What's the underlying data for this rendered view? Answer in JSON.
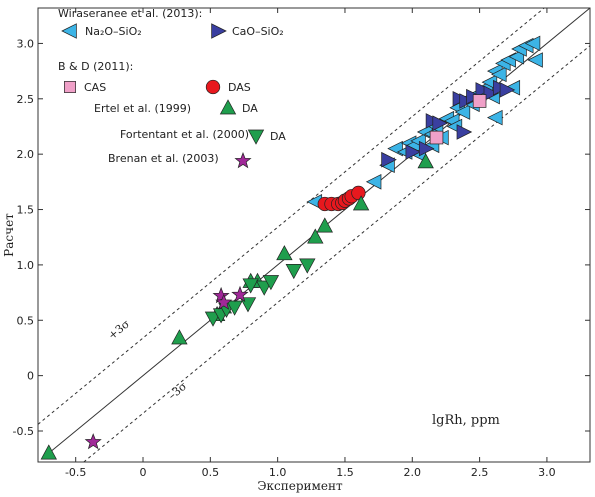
{
  "chart_data": {
    "type": "scatter",
    "xlabel": "Эксперимент",
    "ylabel": "Расчет",
    "annotation": "lgRh, ppm",
    "xlim": [
      -0.78,
      3.32
    ],
    "ylim": [
      -0.78,
      3.32
    ],
    "x_ticks": [
      -0.5,
      0,
      0.5,
      1.0,
      1.5,
      2.0,
      2.5,
      3.0
    ],
    "x_tick_labels": [
      "-0.5",
      "0",
      "0.5",
      "1.0",
      "1.5",
      "2.0",
      "2.5",
      "3.0"
    ],
    "y_ticks": [
      -0.5,
      0,
      0.5,
      1.0,
      1.5,
      2.0,
      2.5,
      3.0
    ],
    "y_tick_labels": [
      "-0.5",
      "0",
      "0.5",
      "1.0",
      "1.5",
      "2.0",
      "2.5",
      "3.0"
    ],
    "grid": false,
    "legend_position": "top-left",
    "lines": [
      {
        "kind": "identity",
        "style": "solid",
        "from": [
          -0.72,
          -0.72
        ],
        "to": [
          3.32,
          3.32
        ]
      },
      {
        "kind": "upper-band",
        "style": "dotted",
        "label": "+3σ",
        "from": [
          -0.78,
          -0.44
        ],
        "to": [
          2.98,
          3.32
        ]
      },
      {
        "kind": "lower-band",
        "style": "dotted",
        "label": "–3σ",
        "from": [
          -0.44,
          -0.78
        ],
        "to": [
          3.32,
          2.98
        ]
      }
    ],
    "group_headers": [
      {
        "text": "Wiraseranee et al. (2013):"
      },
      {
        "text": "B & D (2011):"
      }
    ],
    "series": [
      {
        "name": "Na₂O–SiO₂",
        "marker": "triangle-left",
        "color": "#3cb4e6",
        "points": [
          [
            1.28,
            1.57
          ],
          [
            1.72,
            1.75
          ],
          [
            1.82,
            1.9
          ],
          [
            1.88,
            2.05
          ],
          [
            1.95,
            2.02
          ],
          [
            1.98,
            2.1
          ],
          [
            2.02,
            2.08
          ],
          [
            2.05,
            2.12
          ],
          [
            2.1,
            2.2
          ],
          [
            2.15,
            2.18
          ],
          [
            2.18,
            2.25
          ],
          [
            2.22,
            2.15
          ],
          [
            2.26,
            2.32
          ],
          [
            2.3,
            2.3
          ],
          [
            2.34,
            2.42
          ],
          [
            2.38,
            2.38
          ],
          [
            2.42,
            2.5
          ],
          [
            2.45,
            2.45
          ],
          [
            2.5,
            2.55
          ],
          [
            2.55,
            2.6
          ],
          [
            2.58,
            2.65
          ],
          [
            2.6,
            2.52
          ],
          [
            2.62,
            2.75
          ],
          [
            2.65,
            2.72
          ],
          [
            2.68,
            2.82
          ],
          [
            2.72,
            2.85
          ],
          [
            2.75,
            2.6
          ],
          [
            2.78,
            2.88
          ],
          [
            2.8,
            2.95
          ],
          [
            2.85,
            2.98
          ],
          [
            2.9,
            3.0
          ],
          [
            2.92,
            2.85
          ],
          [
            2.62,
            2.33
          ],
          [
            2.32,
            2.25
          ],
          [
            2.15,
            2.08
          ],
          [
            2.05,
            2.0
          ]
        ]
      },
      {
        "name": "CaO–SiO₂",
        "marker": "triangle-right",
        "color": "#3a3fa0",
        "points": [
          [
            1.82,
            1.95
          ],
          [
            2.0,
            2.02
          ],
          [
            2.1,
            2.05
          ],
          [
            2.15,
            2.3
          ],
          [
            2.2,
            2.28
          ],
          [
            2.35,
            2.5
          ],
          [
            2.4,
            2.48
          ],
          [
            2.45,
            2.52
          ],
          [
            2.52,
            2.58
          ],
          [
            2.58,
            2.55
          ],
          [
            2.65,
            2.6
          ],
          [
            2.7,
            2.58
          ],
          [
            2.38,
            2.2
          ]
        ]
      },
      {
        "name": "CAS",
        "marker": "square",
        "color": "#f0a0c8",
        "points": [
          [
            2.18,
            2.15
          ],
          [
            2.5,
            2.48
          ]
        ]
      },
      {
        "name": "DAS",
        "marker": "circle",
        "color": "#e8181e",
        "points": [
          [
            1.35,
            1.55
          ],
          [
            1.4,
            1.55
          ],
          [
            1.45,
            1.55
          ],
          [
            1.48,
            1.56
          ],
          [
            1.5,
            1.58
          ],
          [
            1.53,
            1.6
          ],
          [
            1.55,
            1.62
          ],
          [
            1.6,
            1.65
          ]
        ]
      },
      {
        "name": "DA",
        "legend_prefix": "Ertel et al. (1999)",
        "marker": "triangle-up",
        "color": "#1f9e4d",
        "points": [
          [
            -0.7,
            -0.7
          ],
          [
            0.27,
            0.34
          ],
          [
            0.55,
            0.55
          ],
          [
            0.6,
            0.62
          ],
          [
            0.8,
            0.85
          ],
          [
            0.85,
            0.85
          ],
          [
            1.05,
            1.1
          ],
          [
            1.28,
            1.25
          ],
          [
            1.35,
            1.35
          ],
          [
            1.62,
            1.55
          ],
          [
            2.1,
            1.93
          ]
        ]
      },
      {
        "name": "DA",
        "legend_prefix": "Fortentant et al. (2000)",
        "marker": "triangle-down",
        "color": "#1f9e4d",
        "points": [
          [
            0.52,
            0.52
          ],
          [
            0.58,
            0.55
          ],
          [
            0.62,
            0.6
          ],
          [
            0.68,
            0.62
          ],
          [
            0.78,
            0.65
          ],
          [
            0.8,
            0.82
          ],
          [
            0.9,
            0.8
          ],
          [
            0.95,
            0.85
          ],
          [
            1.12,
            0.95
          ],
          [
            1.22,
            1.0
          ]
        ]
      },
      {
        "name": "Brenan et al. (2003)",
        "marker": "star",
        "color": "#a02898",
        "points": [
          [
            -0.37,
            -0.6
          ],
          [
            0.58,
            0.72
          ],
          [
            0.72,
            0.73
          ],
          [
            0.6,
            0.66
          ]
        ]
      }
    ]
  }
}
